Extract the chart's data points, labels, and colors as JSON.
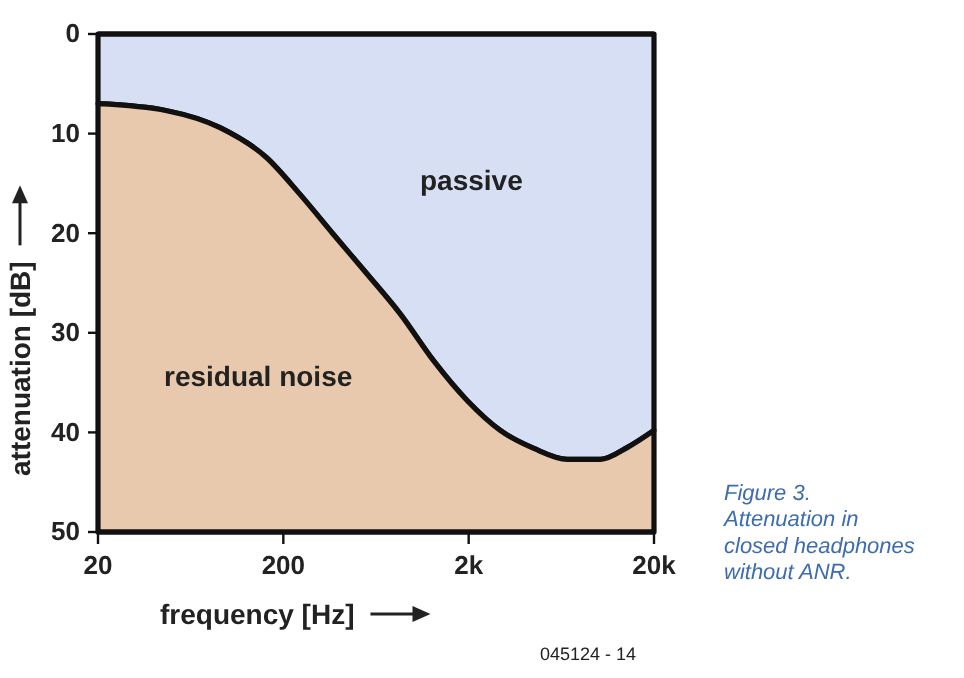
{
  "chart_data": {
    "type": "area",
    "xlabel": "frequency [Hz]",
    "ylabel": "attenuation [dB]",
    "log": "x",
    "xlim": [
      20,
      20000
    ],
    "ylim": [
      50,
      0
    ],
    "xticks": [
      20,
      200,
      {
        "value": 2000,
        "label": "2k"
      },
      {
        "value": 20000,
        "label": "20k"
      }
    ],
    "yticks": [
      0,
      10,
      20,
      30,
      40,
      50
    ],
    "x": [
      20,
      47,
      91,
      162,
      246,
      372,
      566,
      854,
      1292,
      1961,
      2960,
      4490,
      6800,
      10300,
      14400,
      20000
    ],
    "stacked": true,
    "series": [
      {
        "name": "passive",
        "color": "#d6dff3",
        "values": [
          7.0,
          7.7,
          9.4,
          12.4,
          16.1,
          20.1,
          24.1,
          28.1,
          32.8,
          36.8,
          39.8,
          41.6,
          42.7,
          42.7,
          41.5,
          39.8
        ]
      },
      {
        "name": "residual noise",
        "color": "#e9c9ae",
        "values": [
          43.0,
          42.3,
          40.6,
          37.6,
          33.9,
          29.9,
          25.9,
          21.9,
          17.2,
          13.2,
          10.2,
          8.4,
          7.3,
          7.3,
          8.5,
          10.2
        ]
      }
    ],
    "annotations": [
      "045124 - 14",
      "Figure 3. Attenuation in closed headphones without ANR."
    ]
  }
}
